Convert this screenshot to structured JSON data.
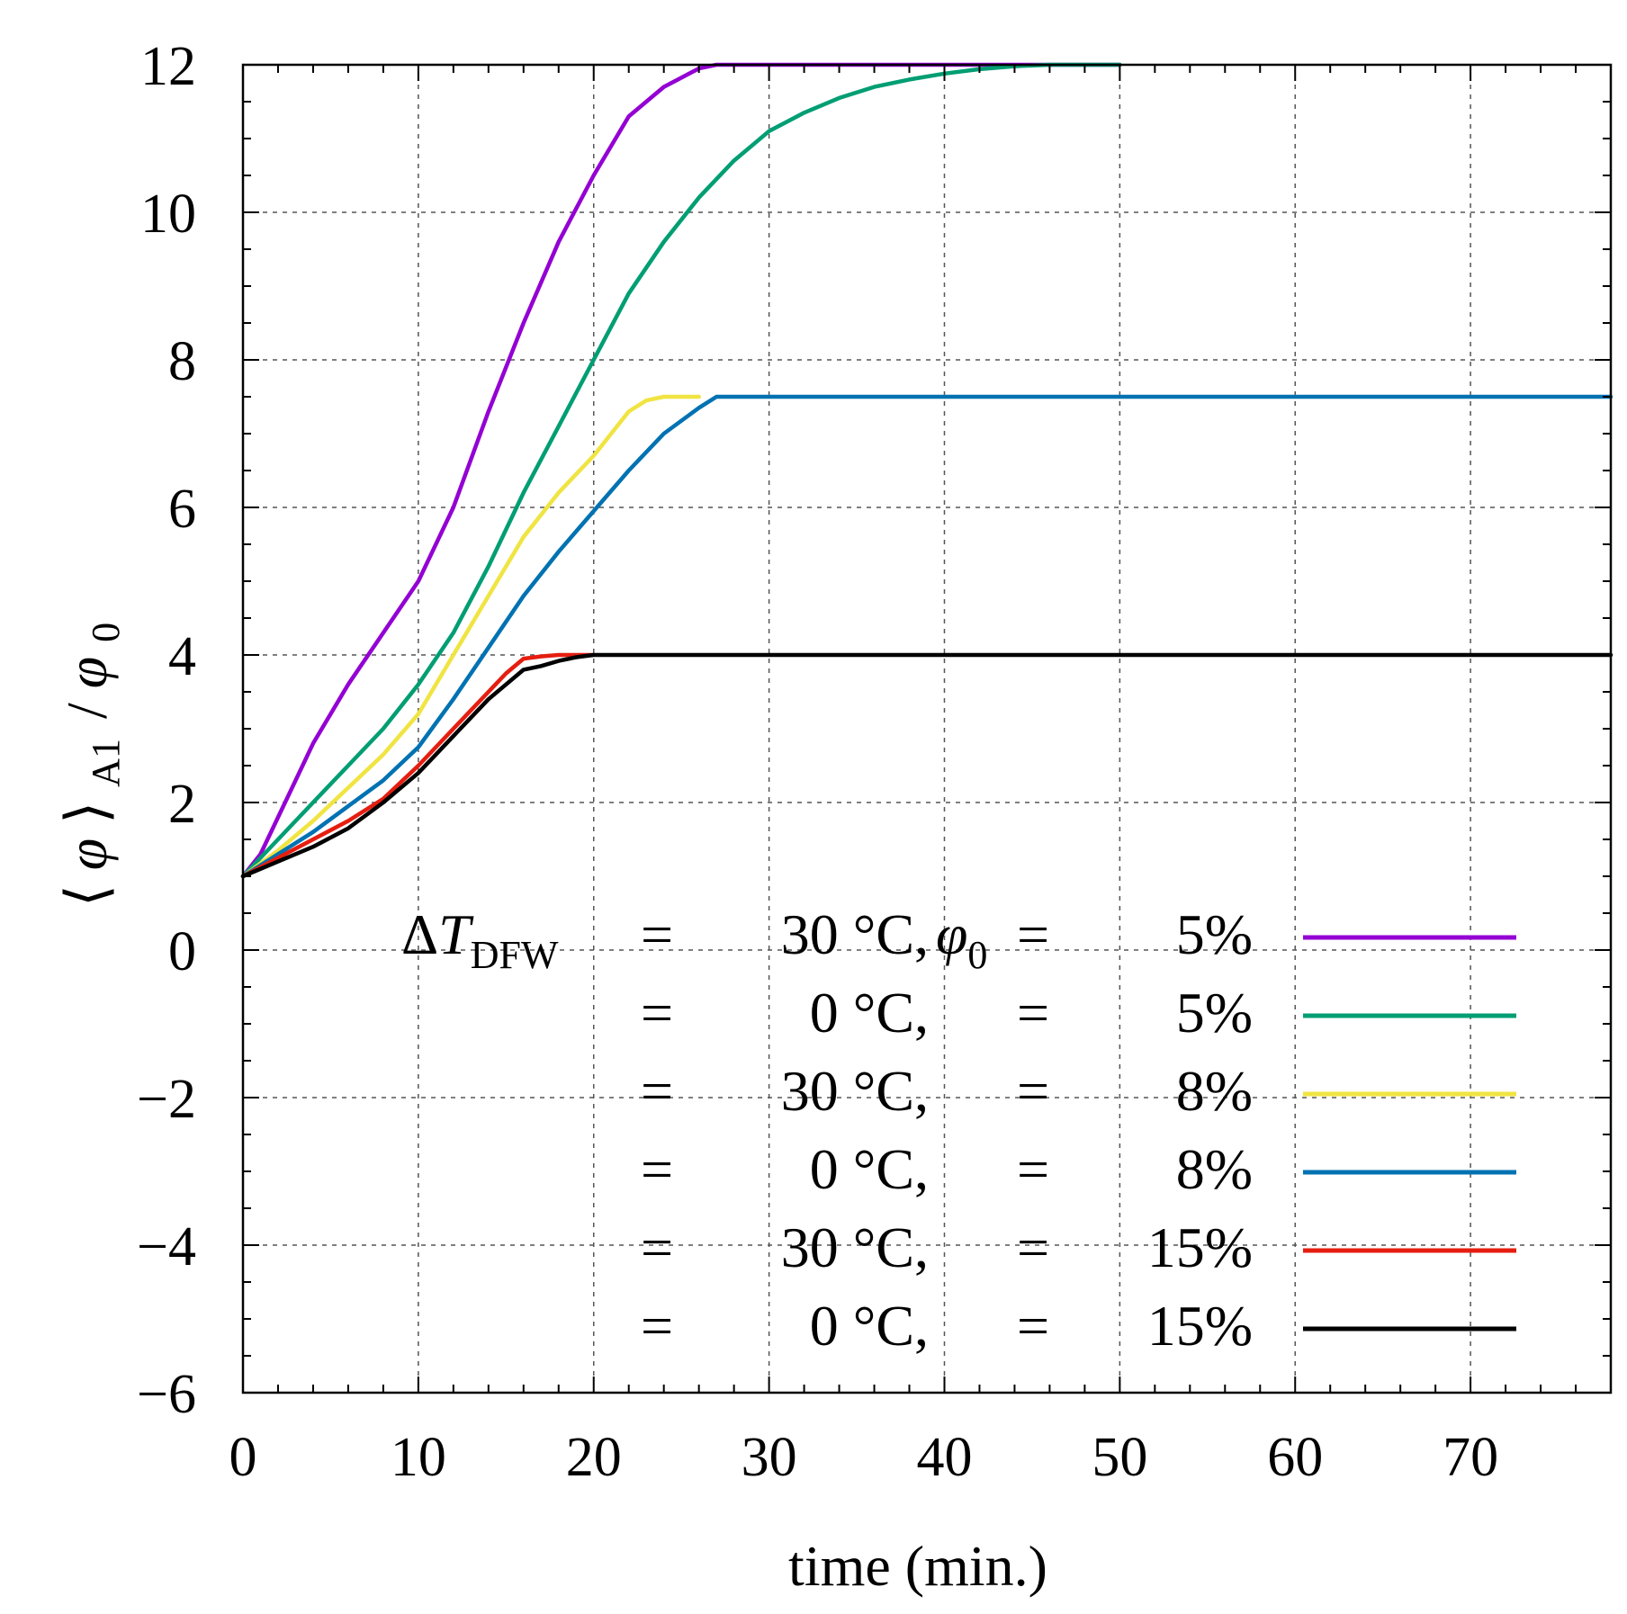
{
  "chart_data": {
    "type": "line",
    "xlabel": "time (min.)",
    "ylabel": "⟨φ⟩A1 / φ0",
    "ylabel_parts": {
      "open": "⟨",
      "phi": "φ",
      "close": "⟩",
      "sub": "A1",
      "slash": "/",
      "phi0": "φ",
      "sub0": "0"
    },
    "xlim": [
      0,
      78
    ],
    "ylim": [
      -6,
      12
    ],
    "grid": true,
    "x_major_ticks": [
      0,
      10,
      20,
      30,
      40,
      50,
      60,
      70
    ],
    "x_tick_labels": [
      "0",
      "10",
      "20",
      "30",
      "40",
      "50",
      "60",
      "70"
    ],
    "y_major_ticks": [
      -6,
      -4,
      -2,
      0,
      2,
      4,
      6,
      8,
      10,
      12
    ],
    "y_tick_labels": [
      "−6",
      "−4",
      "−2",
      "0",
      "2",
      "4",
      "6",
      "8",
      "10",
      "12"
    ],
    "legend_position": "lower-right",
    "series": [
      {
        "name": "ΔT_DFW = 30 °C, φ0 = 5%",
        "color": "#9400d3",
        "legend": {
          "lhs": "ΔT",
          "lhs_sub": "DFW",
          "eq1": "=",
          "temp": "30 °C,",
          "phi": "φ",
          "phi_sub": "0",
          "eq2": "=",
          "pct": "5%"
        },
        "x": [
          0,
          1,
          2,
          3,
          4,
          6,
          8,
          10,
          12,
          14,
          16,
          18,
          20,
          22,
          24,
          26,
          27,
          28,
          30,
          50
        ],
        "y": [
          1,
          1.3,
          1.8,
          2.3,
          2.8,
          3.6,
          4.3,
          5.0,
          6.0,
          7.3,
          8.5,
          9.6,
          10.5,
          11.3,
          11.7,
          11.95,
          12,
          12,
          12,
          12
        ]
      },
      {
        "name": "ΔT_DFW = 0 °C, φ0 = 5%",
        "color": "#009e73",
        "legend": {
          "eq1": "=",
          "temp": "0 °C,",
          "eq2": "=",
          "pct": "5%"
        },
        "x": [
          0,
          2,
          4,
          6,
          8,
          10,
          12,
          14,
          16,
          18,
          20,
          22,
          24,
          26,
          28,
          30,
          32,
          34,
          36,
          38,
          40,
          42,
          44,
          46,
          48,
          50
        ],
        "y": [
          1,
          1.5,
          2.0,
          2.5,
          3.0,
          3.6,
          4.3,
          5.2,
          6.2,
          7.1,
          8.0,
          8.9,
          9.6,
          10.2,
          10.7,
          11.1,
          11.35,
          11.55,
          11.7,
          11.8,
          11.88,
          11.94,
          11.98,
          12,
          12,
          12
        ]
      },
      {
        "name": "ΔT_DFW = 30 °C, φ0 = 8%",
        "color": "#f0e442",
        "legend": {
          "eq1": "=",
          "temp": "30 °C,",
          "eq2": "=",
          "pct": "8%"
        },
        "x": [
          0,
          2,
          4,
          6,
          8,
          10,
          12,
          14,
          16,
          18,
          20,
          22,
          23,
          24,
          26
        ],
        "y": [
          1,
          1.35,
          1.75,
          2.2,
          2.65,
          3.2,
          4.0,
          4.8,
          5.6,
          6.2,
          6.7,
          7.3,
          7.45,
          7.5,
          7.5
        ]
      },
      {
        "name": "ΔT_DFW = 0 °C, φ0 = 8%",
        "color": "#0072b2",
        "legend": {
          "eq1": "=",
          "temp": "0 °C,",
          "eq2": "=",
          "pct": "8%"
        },
        "x": [
          0,
          2,
          4,
          6,
          8,
          10,
          12,
          14,
          16,
          18,
          20,
          22,
          24,
          26,
          27,
          28,
          78
        ],
        "y": [
          1,
          1.3,
          1.6,
          1.95,
          2.3,
          2.75,
          3.4,
          4.1,
          4.8,
          5.4,
          5.95,
          6.5,
          7.0,
          7.35,
          7.5,
          7.5,
          7.5
        ]
      },
      {
        "name": "ΔT_DFW = 30 °C, φ0 = 15%",
        "color": "#e51e10",
        "legend": {
          "eq1": "=",
          "temp": "30 °C,",
          "eq2": "=",
          "pct": "15%"
        },
        "x": [
          0,
          2,
          4,
          6,
          8,
          10,
          12,
          14,
          15,
          16,
          17,
          18,
          19,
          20
        ],
        "y": [
          1,
          1.25,
          1.5,
          1.75,
          2.05,
          2.5,
          3.0,
          3.5,
          3.75,
          3.95,
          3.98,
          4.0,
          4.0,
          4.0
        ]
      },
      {
        "name": "ΔT_DFW = 0 °C, φ0 = 15%",
        "color": "#000000",
        "legend": {
          "eq1": "=",
          "temp": "0 °C,",
          "eq2": "=",
          "pct": "15%"
        },
        "x": [
          0,
          2,
          4,
          6,
          8,
          10,
          12,
          14,
          15,
          16,
          17,
          18,
          19,
          20,
          78
        ],
        "y": [
          1,
          1.2,
          1.4,
          1.65,
          2.0,
          2.4,
          2.9,
          3.4,
          3.6,
          3.8,
          3.85,
          3.92,
          3.97,
          4.0,
          4.0
        ]
      }
    ]
  }
}
